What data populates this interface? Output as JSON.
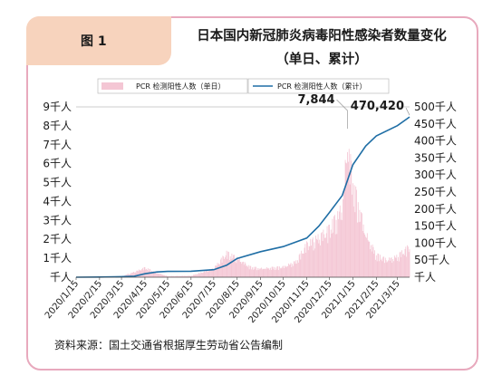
{
  "figure": {
    "tag": "图 1",
    "title_line1": "日本国内新冠肺炎病毒阳性感染者数量变化",
    "title_line2": "（单日、累计）",
    "source": "资料来源：国土交通省根据厚生劳动省公告编制"
  },
  "chart_data": {
    "type": "bar+line",
    "colors": {
      "daily_bars": "#f4c6d4",
      "cumulative_line": "#1f6ea5"
    },
    "legend": [
      "PCR 检测阳性人数（单日）",
      "PCR 检测阳性人数（累计）"
    ],
    "legend_placement": "top",
    "left_axis": {
      "ticks": [
        "9千人",
        "8千人",
        "7千人",
        "6千人",
        "5千人",
        "4千人",
        "3千人",
        "2千人",
        "1千人",
        "千人"
      ],
      "range": [
        0,
        9000
      ]
    },
    "right_axis": {
      "ticks": [
        "500千人",
        "450千人",
        "400千人",
        "350千人",
        "300千人",
        "250千人",
        "200千人",
        "150千人",
        "100千人",
        "50千人",
        "千人"
      ],
      "range": [
        0,
        500000
      ]
    },
    "x_ticks": [
      "2020/1/15",
      "2020/2/15",
      "2020/3/15",
      "2020/4/15",
      "2020/5/15",
      "2020/6/15",
      "2020/7/15",
      "2020/8/15",
      "2020/9/15",
      "2020/10/15",
      "2020/11/15",
      "2020/12/15",
      "2021/1/15",
      "2021/2/15",
      "2021/3/15"
    ],
    "annotations": {
      "daily_peak": "7,844",
      "cumulative_latest": "470,420"
    },
    "cumulative_series": {
      "x": [
        "2020/1/15",
        "2020/2/15",
        "2020/3/15",
        "2020/4/1",
        "2020/4/15",
        "2020/5/1",
        "2020/5/15",
        "2020/6/15",
        "2020/7/15",
        "2020/8/1",
        "2020/8/15",
        "2020/9/15",
        "2020/10/15",
        "2020/11/15",
        "2020/12/1",
        "2020/12/15",
        "2021/1/1",
        "2021/1/15",
        "2021/2/1",
        "2021/2/15",
        "2021/3/15",
        "2021/3/31"
      ],
      "values": [
        0,
        500,
        1500,
        3000,
        10000,
        15500,
        17000,
        17500,
        22000,
        35000,
        55000,
        75000,
        90000,
        115000,
        150000,
        190000,
        240000,
        330000,
        385000,
        415000,
        445000,
        470420
      ]
    },
    "daily_series": {
      "x": [
        "2020/3/15",
        "2020/4/1",
        "2020/4/15",
        "2020/5/1",
        "2020/5/15",
        "2020/6/15",
        "2020/7/15",
        "2020/8/1",
        "2020/8/15",
        "2020/9/1",
        "2020/9/15",
        "2020/10/15",
        "2020/11/1",
        "2020/11/15",
        "2020/12/1",
        "2020/12/15",
        "2021/1/1",
        "2021/1/8",
        "2021/1/15",
        "2021/2/1",
        "2021/2/15",
        "2021/3/1",
        "2021/3/15",
        "2021/3/31"
      ],
      "values": [
        50,
        300,
        550,
        250,
        60,
        80,
        500,
        1400,
        1100,
        600,
        500,
        600,
        900,
        1900,
        2300,
        2800,
        4000,
        7844,
        5500,
        2500,
        1300,
        1000,
        1200,
        1800
      ]
    }
  }
}
